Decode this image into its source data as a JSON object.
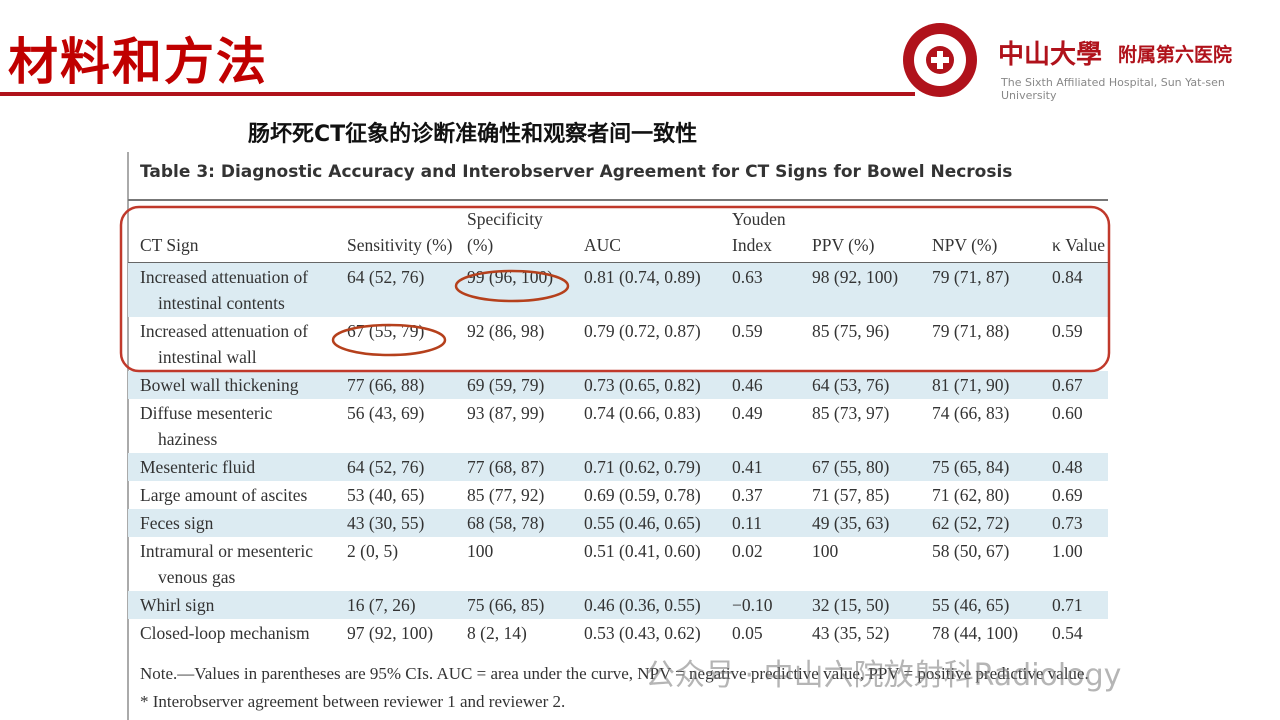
{
  "header": {
    "title": "材料和方法",
    "logo_cn": "中山大學",
    "logo_cn2": "附属第六医院",
    "logo_en": "The Sixth Affiliated Hospital, Sun Yat-sen University"
  },
  "subtitle": "肠坏死CT征象的诊断准确性和观察者间一致性",
  "table": {
    "caption": "Table 3: Diagnostic Accuracy and Interobserver Agreement for CT Signs for Bowel Necrosis",
    "columns": [
      "CT Sign",
      "Sensitivity (%)",
      "Specificity (%)",
      "AUC",
      "Youden Index",
      "PPV (%)",
      "NPV (%)",
      "κ Value"
    ],
    "rows": [
      [
        "Increased attenuation of intestinal contents",
        "64 (52, 76)",
        "99 (96, 100)",
        "0.81 (0.74, 0.89)",
        "0.63",
        "98 (92, 100)",
        "79 (71, 87)",
        "0.84"
      ],
      [
        "Increased attenuation of intestinal wall",
        "67 (55, 79)",
        "92 (86, 98)",
        "0.79 (0.72, 0.87)",
        "0.59",
        "85 (75, 96)",
        "79 (71, 88)",
        "0.59"
      ],
      [
        "Bowel wall thickening",
        "77 (66, 88)",
        "69 (59, 79)",
        "0.73 (0.65, 0.82)",
        "0.46",
        "64 (53, 76)",
        "81 (71, 90)",
        "0.67"
      ],
      [
        "Diffuse mesenteric haziness",
        "56 (43, 69)",
        "93 (87, 99)",
        "0.74 (0.66, 0.83)",
        "0.49",
        "85 (73, 97)",
        "74 (66, 83)",
        "0.60"
      ],
      [
        "Mesenteric fluid",
        "64 (52, 76)",
        "77 (68, 87)",
        "0.71 (0.62, 0.79)",
        "0.41",
        "67 (55, 80)",
        "75 (65, 84)",
        "0.48"
      ],
      [
        "Large amount of ascites",
        "53 (40, 65)",
        "85 (77, 92)",
        "0.69 (0.59, 0.78)",
        "0.37",
        "71 (57, 85)",
        "71 (62, 80)",
        "0.69"
      ],
      [
        "Feces sign",
        "43 (30, 55)",
        "68 (58, 78)",
        "0.55 (0.46, 0.65)",
        "0.11",
        "49 (35, 63)",
        "62 (52, 72)",
        "0.73"
      ],
      [
        "Intramural or mesenteric venous gas",
        "2 (0, 5)",
        "100",
        "0.51 (0.41, 0.60)",
        "0.02",
        "100",
        "58 (50, 67)",
        "1.00"
      ],
      [
        "Whirl sign",
        "16 (7, 26)",
        "75 (66, 85)",
        "0.46 (0.36, 0.55)",
        "−0.10",
        "32 (15, 50)",
        "55 (46, 65)",
        "0.71"
      ],
      [
        "Closed-loop mechanism",
        "97 (92, 100)",
        "8 (2, 14)",
        "0.53 (0.43, 0.62)",
        "0.05",
        "43 (35, 52)",
        "78 (44, 100)",
        "0.54"
      ]
    ],
    "notes": [
      "Note.—Values in parentheses are 95% CIs. AUC = area under the curve, NPV = negative predictive value, PPV = positive predictive value.",
      "* Interobserver agreement between reviewer 1 and reviewer 2."
    ]
  },
  "watermark": "公众号 · 中山六院放射科Radiology"
}
